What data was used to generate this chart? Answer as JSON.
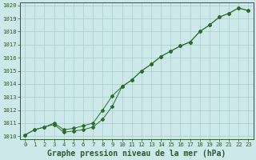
{
  "xlabel": "Graphe pression niveau de la mer (hPa)",
  "xlim": [
    -0.5,
    23.5
  ],
  "ylim": [
    1009.8,
    1020.2
  ],
  "yticks": [
    1010,
    1011,
    1012,
    1013,
    1014,
    1015,
    1016,
    1017,
    1018,
    1019,
    1020
  ],
  "xticks": [
    0,
    1,
    2,
    3,
    4,
    5,
    6,
    7,
    8,
    9,
    10,
    11,
    12,
    13,
    14,
    15,
    16,
    17,
    18,
    19,
    20,
    21,
    22,
    23
  ],
  "line1_x": [
    0,
    1,
    2,
    3,
    4,
    5,
    6,
    7,
    8,
    9,
    10,
    11,
    12,
    13,
    14,
    15,
    16,
    17,
    18,
    19,
    20,
    21,
    22,
    23
  ],
  "line1_y": [
    1010.1,
    1010.5,
    1010.7,
    1011.0,
    1010.5,
    1010.6,
    1010.8,
    1011.0,
    1012.0,
    1013.1,
    1013.8,
    1014.3,
    1015.0,
    1015.5,
    1016.1,
    1016.5,
    1016.9,
    1017.2,
    1018.0,
    1018.5,
    1019.1,
    1019.4,
    1019.8,
    1019.6
  ],
  "line2_x": [
    0,
    1,
    2,
    3,
    4,
    5,
    6,
    7,
    8,
    9,
    10,
    11,
    12,
    13,
    14,
    15,
    16,
    17,
    18,
    19,
    20,
    21,
    22,
    23
  ],
  "line2_y": [
    1010.1,
    1010.5,
    1010.7,
    1010.9,
    1010.3,
    1010.4,
    1010.5,
    1010.7,
    1011.3,
    1012.3,
    1013.8,
    1014.3,
    1015.0,
    1015.5,
    1016.1,
    1016.5,
    1016.9,
    1017.2,
    1018.0,
    1018.5,
    1019.1,
    1019.4,
    1019.8,
    1019.6
  ],
  "line_color": "#2d6a2d",
  "marker": "D",
  "marker_size": 2.0,
  "bg_color": "#cce8e8",
  "grid_color": "#aacaca",
  "tick_label_color": "#2d5a2d",
  "title_fontsize": 7.0,
  "tick_fontsize": 5.2
}
